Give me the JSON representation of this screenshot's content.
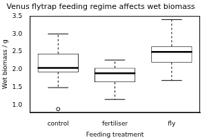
{
  "chart_data": {
    "type": "box",
    "title": "Venus flytrap feeding regime affects wet biomass",
    "x_label": "Feeding treatment",
    "y_label": "Wet biomass / g",
    "categories": [
      "control",
      "fertiliser",
      "fly"
    ],
    "boxes": [
      {
        "min": 1.5,
        "q1": 1.93,
        "median": 2.05,
        "q3": 2.45,
        "max": 3.0,
        "outliers": [
          0.9
        ]
      },
      {
        "min": 1.17,
        "q1": 1.65,
        "median": 1.9,
        "q3": 2.05,
        "max": 2.27,
        "outliers": []
      },
      {
        "min": 1.7,
        "q1": 2.2,
        "median": 2.5,
        "q3": 2.65,
        "max": 3.4,
        "outliers": []
      }
    ],
    "color": "#000000",
    "ylim": [
      0.8,
      3.5
    ],
    "yticks": [
      {
        "value": 1.0,
        "label": "1.0"
      },
      1.5,
      {
        "value": 2.0,
        "label": "2.0"
      },
      2.5,
      {
        "value": 3.0,
        "label": "3.0"
      },
      3.5
    ],
    "grid": false
  }
}
